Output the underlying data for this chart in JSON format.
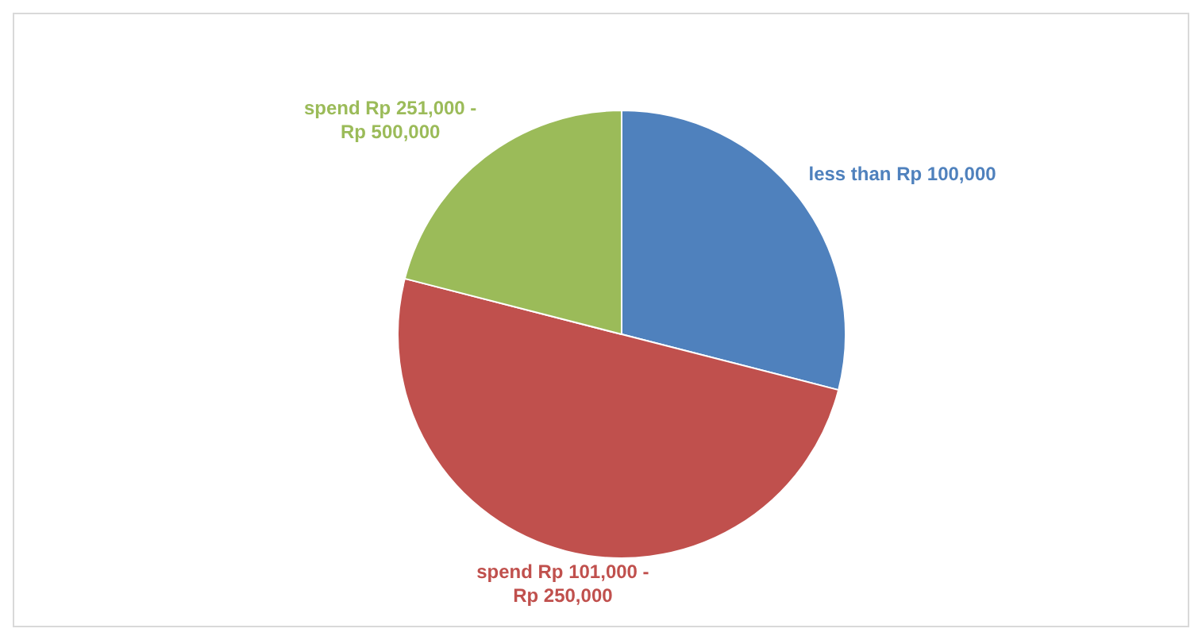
{
  "chart_data": {
    "type": "pie",
    "categories": [
      "less than Rp 100,000",
      "spend Rp 101,000 - Rp 250,000",
      "spend Rp 251,000 - Rp 500,000"
    ],
    "values": [
      29,
      50,
      21
    ],
    "colors": [
      "#4f81bd",
      "#c0504d",
      "#9bbb59"
    ],
    "legend": false
  }
}
